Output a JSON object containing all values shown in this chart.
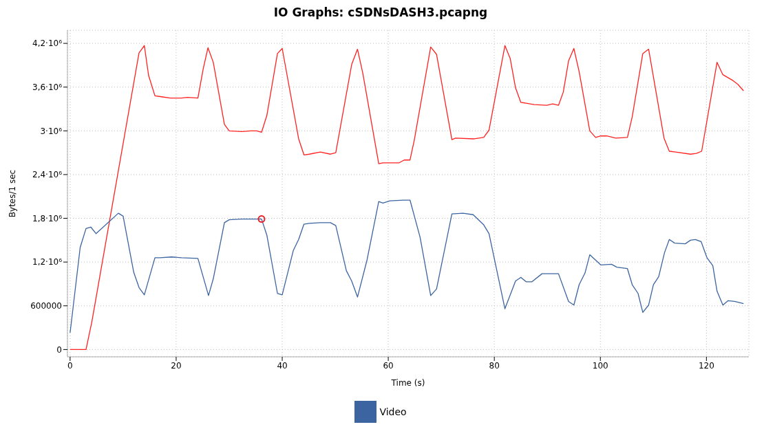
{
  "chart_data": {
    "type": "line",
    "title": "IO Graphs: cSDNsDASH3.pcapng",
    "xlabel": "Time (s)",
    "ylabel": "Bytes/1 sec",
    "xlim": [
      -0.5,
      128
    ],
    "xticks": [
      0,
      20,
      40,
      60,
      80,
      100,
      120
    ],
    "ylim": [
      -100000,
      4380000
    ],
    "yticks": [
      0,
      600000,
      {
        "value": 1200000,
        "label": "1,2·10⁶"
      },
      {
        "value": 1800000,
        "label": "1,8·10⁶"
      },
      {
        "value": 2400000,
        "label": "2,4·10⁶"
      },
      {
        "value": 3000000,
        "label": "3·10⁶"
      },
      {
        "value": 3600000,
        "label": "3,6·10⁶"
      },
      {
        "value": 4200000,
        "label": "4,2·10⁶"
      }
    ],
    "grid": true,
    "legend": "bottom",
    "marker": "none",
    "line_style": "solid",
    "series": [
      {
        "color": "#ff2020",
        "x": [
          0,
          3,
          4.1,
          13,
          14,
          14.8,
          16,
          17,
          18.9,
          21,
          22.1,
          24.1,
          25.1,
          26,
          27,
          29.1,
          30,
          32.4,
          34.1,
          35.2,
          36.1,
          37.1,
          39.1,
          40,
          43.1,
          44.1,
          45.1,
          47.2,
          49.1,
          50.1,
          53.1,
          54.2,
          55.2,
          58.2,
          59,
          62,
          63,
          64.1,
          64.9,
          68,
          69.1,
          72,
          72.7,
          76.2,
          78,
          79,
          82,
          83,
          84,
          85,
          86,
          87.5,
          89.9,
          91,
          92.1,
          93,
          94,
          95,
          96,
          98,
          99.1,
          100.1,
          101.2,
          102.9,
          105.1,
          106,
          108,
          109.1,
          112,
          113,
          114.2,
          117,
          118.1,
          119.1,
          122,
          123.1,
          125,
          125.9,
          127
        ],
        "values": [
          0,
          0,
          380000,
          4070000,
          4170000,
          3760000,
          3480000,
          3470000,
          3450000,
          3450000,
          3460000,
          3450000,
          3850000,
          4140000,
          3940000,
          3090000,
          3000000,
          2990000,
          3000000,
          3000000,
          2980000,
          3210000,
          4060000,
          4130000,
          2890000,
          2670000,
          2680000,
          2710000,
          2680000,
          2700000,
          3910000,
          4120000,
          3790000,
          2550000,
          2560000,
          2560000,
          2600000,
          2600000,
          2870000,
          4150000,
          4050000,
          2880000,
          2900000,
          2890000,
          2910000,
          3010000,
          4170000,
          3990000,
          3590000,
          3390000,
          3380000,
          3360000,
          3350000,
          3370000,
          3350000,
          3530000,
          3960000,
          4130000,
          3810000,
          3000000,
          2910000,
          2930000,
          2930000,
          2900000,
          2910000,
          3190000,
          4060000,
          4120000,
          2900000,
          2720000,
          2710000,
          2680000,
          2690000,
          2720000,
          3940000,
          3770000,
          3690000,
          3640000,
          3550000
        ]
      },
      {
        "name": "Video",
        "color": "#3b64a0",
        "x": [
          0,
          1.9,
          3,
          3.9,
          4.9,
          9.1,
          10,
          12,
          13,
          14,
          16,
          17,
          19.1,
          21,
          24.1,
          26.1,
          27,
          29.1,
          30,
          32.4,
          36.1,
          37.1,
          39.1,
          40,
          42.1,
          43.1,
          44.1,
          45.1,
          47.2,
          49.1,
          50.1,
          52.1,
          53.1,
          54.2,
          56,
          58.2,
          59,
          60.3,
          62.9,
          64.1,
          66,
          68,
          69.1,
          72,
          74.1,
          76,
          78,
          79,
          82,
          84,
          85,
          86,
          87.1,
          89,
          92.1,
          94,
          95,
          96,
          97.1,
          98,
          100.1,
          102.1,
          103.1,
          105.1,
          106,
          107.1,
          108,
          109.1,
          110,
          111,
          112.1,
          113,
          114,
          116,
          117,
          117.9,
          119,
          120.1,
          121.2,
          122,
          123.1,
          124.1,
          125.3,
          127
        ],
        "values": [
          230000,
          1400000,
          1660000,
          1680000,
          1590000,
          1870000,
          1830000,
          1060000,
          850000,
          750000,
          1260000,
          1260000,
          1270000,
          1260000,
          1250000,
          740000,
          970000,
          1740000,
          1780000,
          1790000,
          1790000,
          1570000,
          770000,
          750000,
          1360000,
          1510000,
          1720000,
          1730000,
          1740000,
          1740000,
          1700000,
          1080000,
          940000,
          720000,
          1230000,
          2030000,
          2010000,
          2040000,
          2050000,
          2050000,
          1540000,
          740000,
          830000,
          1860000,
          1870000,
          1850000,
          1710000,
          1590000,
          560000,
          940000,
          990000,
          930000,
          930000,
          1040000,
          1040000,
          660000,
          610000,
          890000,
          1050000,
          1300000,
          1160000,
          1170000,
          1130000,
          1110000,
          890000,
          770000,
          510000,
          610000,
          890000,
          1000000,
          1330000,
          1510000,
          1460000,
          1450000,
          1500000,
          1510000,
          1480000,
          1260000,
          1150000,
          800000,
          610000,
          670000,
          660000,
          630000
        ]
      },
      {
        "type": "scatter",
        "color": "#e8202a",
        "marker": "circle",
        "x": [
          36.1
        ],
        "values": [
          1790000
        ]
      }
    ]
  }
}
